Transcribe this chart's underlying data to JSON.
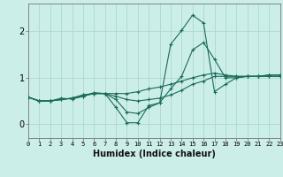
{
  "xlabel": "Humidex (Indice chaleur)",
  "background_color": "#cceee8",
  "grid_color": "#aad8d0",
  "line_color": "#1a6b5a",
  "xlim": [
    0,
    23
  ],
  "ylim": [
    -0.3,
    2.6
  ],
  "yticks": [
    0,
    1,
    2
  ],
  "xticks": [
    0,
    1,
    2,
    3,
    4,
    5,
    6,
    7,
    8,
    9,
    10,
    11,
    12,
    13,
    14,
    15,
    16,
    17,
    18,
    19,
    20,
    21,
    22,
    23
  ],
  "line1_x": [
    0,
    1,
    2,
    3,
    4,
    5,
    6,
    7,
    8,
    9,
    10,
    11,
    12,
    13,
    14,
    15,
    16,
    17,
    18,
    19,
    20,
    21,
    22,
    23
  ],
  "line1_y": [
    0.58,
    0.5,
    0.5,
    0.56,
    0.54,
    0.6,
    0.68,
    0.66,
    0.36,
    0.03,
    0.03,
    0.4,
    0.46,
    1.72,
    2.02,
    2.35,
    2.18,
    0.7,
    0.86,
    1.0,
    1.03,
    1.03,
    1.06,
    1.06
  ],
  "line2_x": [
    0,
    1,
    2,
    3,
    4,
    5,
    6,
    7,
    8,
    9,
    10,
    11,
    12,
    13,
    14,
    15,
    16,
    17,
    18,
    19,
    20,
    21,
    22,
    23
  ],
  "line2_y": [
    0.58,
    0.5,
    0.5,
    0.53,
    0.56,
    0.63,
    0.66,
    0.66,
    0.66,
    0.66,
    0.7,
    0.76,
    0.8,
    0.86,
    0.93,
    1.0,
    1.06,
    1.1,
    1.06,
    1.03,
    1.03,
    1.03,
    1.06,
    1.06
  ],
  "line3_x": [
    0,
    1,
    2,
    3,
    4,
    5,
    6,
    7,
    8,
    9,
    10,
    11,
    12,
    13,
    14,
    15,
    16,
    17,
    18,
    19,
    20,
    21,
    22,
    23
  ],
  "line3_y": [
    0.58,
    0.5,
    0.5,
    0.53,
    0.56,
    0.63,
    0.66,
    0.66,
    0.6,
    0.53,
    0.5,
    0.53,
    0.56,
    0.63,
    0.73,
    0.86,
    0.93,
    1.03,
    1.03,
    1.03,
    1.03,
    1.03,
    1.03,
    1.03
  ],
  "line4_x": [
    0,
    1,
    2,
    3,
    4,
    5,
    6,
    7,
    8,
    9,
    10,
    11,
    12,
    13,
    14,
    15,
    16,
    17,
    18,
    19,
    20,
    21,
    22,
    23
  ],
  "line4_y": [
    0.58,
    0.5,
    0.5,
    0.53,
    0.56,
    0.6,
    0.66,
    0.66,
    0.53,
    0.26,
    0.23,
    0.36,
    0.46,
    0.76,
    1.03,
    1.6,
    1.76,
    1.4,
    1.0,
    1.0,
    1.03,
    1.03,
    1.03,
    1.03
  ]
}
